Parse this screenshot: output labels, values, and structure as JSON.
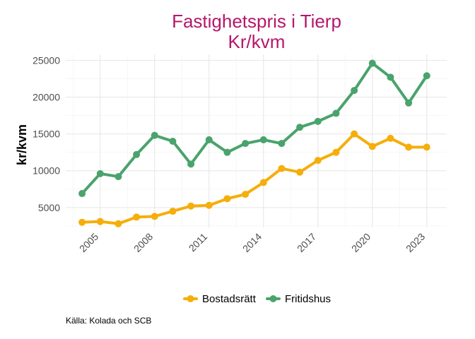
{
  "chart_data": {
    "type": "line",
    "title": "Fastighetspris i Tierp",
    "subtitle": "Kr/kvm",
    "xlabel": "",
    "ylabel": "kr/kvm",
    "x": [
      2004,
      2005,
      2006,
      2007,
      2008,
      2009,
      2010,
      2011,
      2012,
      2013,
      2014,
      2015,
      2016,
      2017,
      2018,
      2019,
      2020,
      2021,
      2022,
      2023
    ],
    "x_ticks": [
      "2005",
      "2008",
      "2011",
      "2014",
      "2017",
      "2020",
      "2023"
    ],
    "y_ticks": [
      "5000",
      "10000",
      "15000",
      "20000",
      "25000"
    ],
    "ylim": [
      2300,
      25800
    ],
    "xlim": [
      2003.1,
      2024.1
    ],
    "series": [
      {
        "name": "Bostadsrätt",
        "color": "#f5ae0a",
        "values": [
          3000,
          3100,
          2800,
          3700,
          3800,
          4500,
          5200,
          5300,
          6200,
          6800,
          8400,
          10300,
          9800,
          11400,
          12500,
          15000,
          13300,
          14400,
          13200,
          13200
        ]
      },
      {
        "name": "Fritidshus",
        "color": "#4aa36c",
        "values": [
          6900,
          9600,
          9200,
          12200,
          14800,
          14000,
          10900,
          14200,
          12500,
          13700,
          14200,
          13700,
          15900,
          16700,
          17800,
          20900,
          24600,
          22700,
          19200,
          22900
        ]
      }
    ],
    "grid": true,
    "legend_position": "bottom",
    "source": "Källa: Kolada och SCB"
  }
}
